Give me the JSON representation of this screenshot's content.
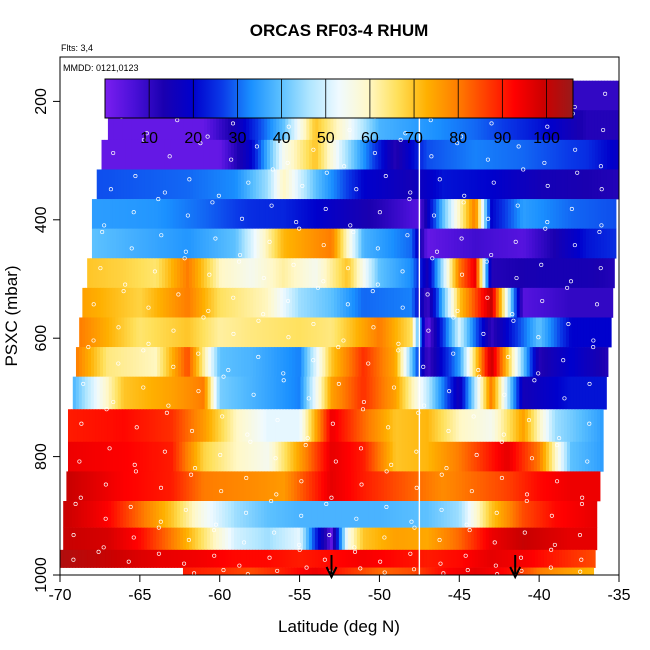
{
  "chart_data": {
    "type": "heatmap",
    "title": "ORCAS RF03-4 RHUM",
    "flights_label": "Flts: 3,4",
    "date_label": "MMDD: 0121,0123",
    "xlabel": "Latitude (deg N)",
    "ylabel": "PSXC (mbar)",
    "xlim": [
      -70,
      -35
    ],
    "ylim": [
      1000,
      125
    ],
    "y_inverted": true,
    "x_ticks": [
      -70,
      -65,
      -60,
      -55,
      -50,
      -45,
      -40,
      -35
    ],
    "y_ticks": [
      200,
      400,
      600,
      800,
      1000
    ],
    "colorbar": {
      "ticks": [
        10,
        20,
        30,
        40,
        50,
        60,
        70,
        80,
        90,
        100
      ],
      "range": [
        0,
        106
      ],
      "colors": [
        "#7a1ef0",
        "#4a10d8",
        "#1a00b0",
        "#0000cc",
        "#0a3ae8",
        "#1a90ff",
        "#5bc0ff",
        "#b0e6ff",
        "#f0faff",
        "#fff8c8",
        "#ffe05a",
        "#ffb000",
        "#ff8000",
        "#ff4000",
        "#ff0000",
        "#cc0000",
        "#991a1a"
      ]
    },
    "vertical_line_lat": -47.5,
    "arrows_lat": [
      -53,
      -41.5
    ],
    "layers": [
      {
        "p": 190,
        "xmin": -67,
        "xmax": -35,
        "stops": [
          [
            -67,
            3
          ],
          [
            -60,
            3
          ],
          [
            -56,
            14
          ],
          [
            -54,
            8
          ],
          [
            -52,
            6
          ],
          [
            -50,
            15
          ],
          [
            -48,
            26
          ],
          [
            -45,
            20
          ],
          [
            -42,
            14
          ],
          [
            -38,
            10
          ],
          [
            -35,
            10
          ]
        ]
      },
      {
        "p": 240,
        "xmin": -67,
        "xmax": -35,
        "stops": [
          [
            -67,
            3
          ],
          [
            -61,
            3
          ],
          [
            -59,
            15
          ],
          [
            -56,
            40
          ],
          [
            -54,
            70
          ],
          [
            -52,
            55
          ],
          [
            -50,
            38
          ],
          [
            -47,
            34
          ],
          [
            -44,
            30
          ],
          [
            -40,
            22
          ],
          [
            -37,
            12
          ],
          [
            -35,
            12
          ]
        ]
      },
      {
        "p": 290,
        "xmin": -67.4,
        "xmax": -35,
        "stops": [
          [
            -67.4,
            3
          ],
          [
            -60,
            3
          ],
          [
            -58,
            20
          ],
          [
            -56,
            55
          ],
          [
            -54,
            70
          ],
          [
            -52,
            45
          ],
          [
            -49,
            12
          ],
          [
            -47,
            28
          ],
          [
            -44,
            32
          ],
          [
            -41,
            30
          ],
          [
            -37,
            25
          ],
          [
            -35,
            18
          ]
        ]
      },
      {
        "p": 340,
        "xmin": -67.7,
        "xmax": -35,
        "stops": [
          [
            -67.7,
            28
          ],
          [
            -62,
            30
          ],
          [
            -59,
            33
          ],
          [
            -57,
            45
          ],
          [
            -56,
            60
          ],
          [
            -54,
            40
          ],
          [
            -51,
            20
          ],
          [
            -48,
            15
          ],
          [
            -46,
            22
          ],
          [
            -43,
            20
          ],
          [
            -40,
            15
          ],
          [
            -35,
            12
          ]
        ]
      },
      {
        "p": 390,
        "xmin": -68,
        "xmax": -35.2,
        "stops": [
          [
            -68,
            35
          ],
          [
            -64,
            34
          ],
          [
            -61,
            30
          ],
          [
            -58,
            25
          ],
          [
            -56,
            24
          ],
          [
            -53,
            18
          ],
          [
            -50,
            12
          ],
          [
            -47.5,
            5
          ],
          [
            -46,
            40
          ],
          [
            -44,
            80
          ],
          [
            -43,
            20
          ],
          [
            -41,
            35
          ],
          [
            -38,
            30
          ],
          [
            -35.2,
            28
          ]
        ]
      },
      {
        "p": 440,
        "xmin": -68,
        "xmax": -35.2,
        "stops": [
          [
            -68,
            40
          ],
          [
            -62,
            34
          ],
          [
            -59,
            40
          ],
          [
            -56,
            72
          ],
          [
            -53,
            80
          ],
          [
            -51,
            38
          ],
          [
            -48,
            30
          ],
          [
            -47,
            3
          ],
          [
            -44,
            8
          ],
          [
            -41,
            5
          ],
          [
            -37,
            22
          ],
          [
            -35.2,
            25
          ]
        ]
      },
      {
        "p": 490,
        "xmin": -68.3,
        "xmax": -35.3,
        "stops": [
          [
            -68.3,
            70
          ],
          [
            -66,
            68
          ],
          [
            -64,
            65
          ],
          [
            -62,
            80
          ],
          [
            -60,
            60
          ],
          [
            -58,
            55
          ],
          [
            -56,
            62
          ],
          [
            -54,
            55
          ],
          [
            -52,
            70
          ],
          [
            -50,
            40
          ],
          [
            -48,
            33
          ],
          [
            -47,
            15
          ],
          [
            -45,
            80
          ],
          [
            -44,
            95
          ],
          [
            -43,
            12
          ],
          [
            -40,
            14
          ],
          [
            -37,
            14
          ],
          [
            -35.3,
            12
          ]
        ]
      },
      {
        "p": 540,
        "xmin": -68.6,
        "xmax": -35.4,
        "stops": [
          [
            -68.6,
            75
          ],
          [
            -65,
            68
          ],
          [
            -62,
            80
          ],
          [
            -60,
            66
          ],
          [
            -57,
            60
          ],
          [
            -55,
            45
          ],
          [
            -53,
            40
          ],
          [
            -51,
            30
          ],
          [
            -48,
            32
          ],
          [
            -47,
            8
          ],
          [
            -45,
            70
          ],
          [
            -43,
            100
          ],
          [
            -41,
            5
          ],
          [
            -38,
            10
          ],
          [
            -35.4,
            10
          ]
        ]
      },
      {
        "p": 590,
        "xmin": -68.8,
        "xmax": -35.5,
        "stops": [
          [
            -68.8,
            80
          ],
          [
            -65,
            65
          ],
          [
            -62,
            70
          ],
          [
            -60,
            62
          ],
          [
            -58,
            64
          ],
          [
            -55,
            66
          ],
          [
            -53,
            64
          ],
          [
            -50,
            80
          ],
          [
            -48,
            66
          ],
          [
            -47,
            3
          ],
          [
            -45,
            50
          ],
          [
            -43,
            10
          ],
          [
            -40,
            40
          ],
          [
            -38,
            20
          ],
          [
            -35.5,
            20
          ]
        ]
      },
      {
        "p": 640,
        "xmin": -69,
        "xmax": -35.7,
        "stops": [
          [
            -69,
            80
          ],
          [
            -67,
            64
          ],
          [
            -64,
            60
          ],
          [
            -62,
            85
          ],
          [
            -60,
            40
          ],
          [
            -58,
            38
          ],
          [
            -55,
            32
          ],
          [
            -53,
            70
          ],
          [
            -51,
            88
          ],
          [
            -49,
            74
          ],
          [
            -47,
            8
          ],
          [
            -45,
            35
          ],
          [
            -43,
            100
          ],
          [
            -40,
            12
          ],
          [
            -38,
            20
          ],
          [
            -35.7,
            12
          ]
        ]
      },
      {
        "p": 690,
        "xmin": -69.2,
        "xmax": -35.8,
        "stops": [
          [
            -69.2,
            38
          ],
          [
            -66,
            70
          ],
          [
            -63,
            75
          ],
          [
            -61,
            80
          ],
          [
            -60,
            42
          ],
          [
            -57,
            36
          ],
          [
            -55,
            32
          ],
          [
            -53,
            75
          ],
          [
            -51,
            88
          ],
          [
            -49,
            75
          ],
          [
            -47,
            48
          ],
          [
            -45,
            15
          ],
          [
            -43,
            80
          ],
          [
            -41,
            15
          ],
          [
            -38,
            22
          ],
          [
            -35.8,
            22
          ]
        ]
      },
      {
        "p": 750,
        "xmin": -69.5,
        "xmax": -36,
        "stops": [
          [
            -69.5,
            90
          ],
          [
            -66,
            92
          ],
          [
            -63,
            88
          ],
          [
            -61,
            76
          ],
          [
            -59,
            60
          ],
          [
            -57,
            52
          ],
          [
            -55,
            52
          ],
          [
            -53,
            95
          ],
          [
            -51,
            82
          ],
          [
            -49,
            70
          ],
          [
            -47,
            72
          ],
          [
            -45,
            60
          ],
          [
            -43,
            55
          ],
          [
            -41,
            75
          ],
          [
            -39,
            45
          ],
          [
            -36,
            35
          ]
        ]
      },
      {
        "p": 800,
        "xmin": -69.5,
        "xmax": -36,
        "stops": [
          [
            -69.5,
            95
          ],
          [
            -66,
            93
          ],
          [
            -63,
            90
          ],
          [
            -61,
            68
          ],
          [
            -59,
            60
          ],
          [
            -57,
            55
          ],
          [
            -55,
            75
          ],
          [
            -53,
            96
          ],
          [
            -51,
            90
          ],
          [
            -49,
            70
          ],
          [
            -47,
            72
          ],
          [
            -45,
            80
          ],
          [
            -42,
            96
          ],
          [
            -40,
            80
          ],
          [
            -38,
            40
          ],
          [
            -36,
            35
          ]
        ]
      },
      {
        "p": 850,
        "xmin": -69.6,
        "xmax": -36.2,
        "stops": [
          [
            -69.6,
            100
          ],
          [
            -66,
            93
          ],
          [
            -63,
            90
          ],
          [
            -61,
            80
          ],
          [
            -58,
            78
          ],
          [
            -56,
            76
          ],
          [
            -53,
            96
          ],
          [
            -51,
            90
          ],
          [
            -49,
            85
          ],
          [
            -46,
            78
          ],
          [
            -44,
            82
          ],
          [
            -42,
            86
          ],
          [
            -40,
            92
          ],
          [
            -38,
            95
          ],
          [
            -36.2,
            95
          ]
        ]
      },
      {
        "p": 900,
        "xmin": -69.8,
        "xmax": -36.4,
        "stops": [
          [
            -69.8,
            100
          ],
          [
            -67,
            93
          ],
          [
            -63,
            70
          ],
          [
            -61,
            55
          ],
          [
            -59,
            45
          ],
          [
            -57,
            40
          ],
          [
            -55,
            38
          ],
          [
            -50,
            38
          ],
          [
            -47,
            40
          ],
          [
            -45,
            45
          ],
          [
            -43,
            70
          ],
          [
            -41,
            85
          ],
          [
            -39,
            92
          ],
          [
            -37,
            95
          ],
          [
            -36.4,
            96
          ]
        ]
      },
      {
        "p": 940,
        "xmin": -69.8,
        "xmax": -36.4,
        "stops": [
          [
            -69.8,
            100
          ],
          [
            -67,
            98
          ],
          [
            -65,
            92
          ],
          [
            -63,
            80
          ],
          [
            -61,
            65
          ],
          [
            -59,
            50
          ],
          [
            -57,
            45
          ],
          [
            -55,
            52
          ],
          [
            -54,
            25
          ],
          [
            -53,
            4
          ],
          [
            -52,
            55
          ],
          [
            -51,
            70
          ],
          [
            -49,
            75
          ],
          [
            -47,
            74
          ],
          [
            -45,
            82
          ],
          [
            -43,
            95
          ],
          [
            -41,
            100
          ],
          [
            -38,
            96
          ],
          [
            -36.4,
            96
          ]
        ]
      },
      {
        "p": 975,
        "xmin": -70,
        "xmax": -36.5,
        "stops": [
          [
            -70,
            103
          ],
          [
            -67,
            100
          ],
          [
            -64,
            96
          ],
          [
            -61,
            94
          ],
          [
            -59,
            92
          ],
          [
            -57,
            92
          ],
          [
            -55,
            90
          ],
          [
            -53,
            92
          ],
          [
            -51,
            94
          ],
          [
            -49,
            92
          ],
          [
            -47,
            90
          ],
          [
            -45,
            92
          ],
          [
            -43,
            96
          ],
          [
            -41,
            94
          ],
          [
            -38,
            88
          ],
          [
            -36.5,
            85
          ]
        ]
      },
      {
        "p": 1000,
        "xmin": -62.3,
        "xmax": -36.6,
        "stops": [
          [
            -62.3,
            90
          ],
          [
            -60,
            88
          ],
          [
            -58,
            85
          ],
          [
            -56,
            90
          ],
          [
            -54,
            95
          ],
          [
            -52,
            88
          ],
          [
            -50,
            82
          ],
          [
            -48,
            85
          ],
          [
            -46,
            92
          ],
          [
            -44,
            96
          ],
          [
            -42,
            92
          ],
          [
            -40,
            80
          ],
          [
            -38,
            75
          ],
          [
            -36.6,
            72
          ]
        ]
      }
    ]
  }
}
